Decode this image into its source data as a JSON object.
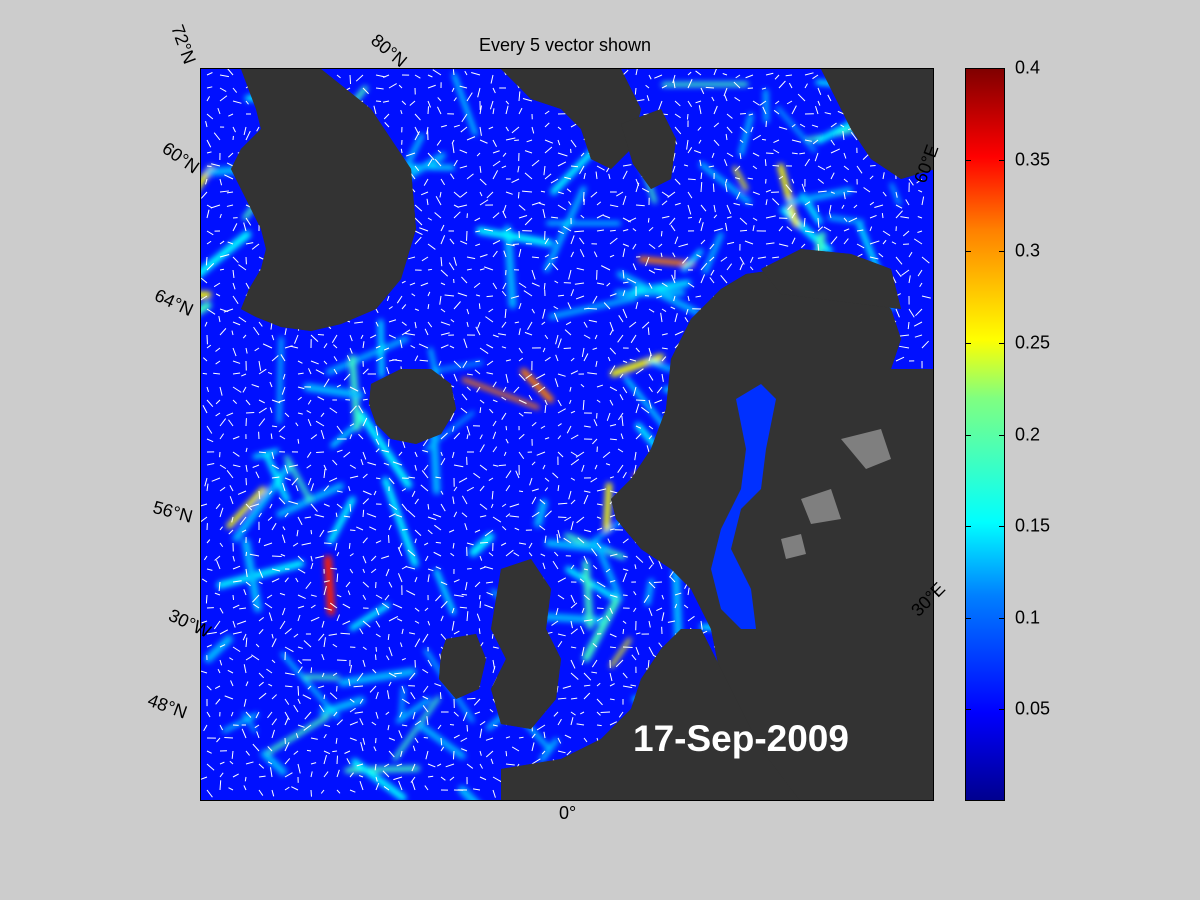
{
  "title": "Every 5 vector shown",
  "date": "17-Sep-2009",
  "colorbar": {
    "min": 0,
    "max": 0.4,
    "ticks": [
      "0.4",
      "0.35",
      "0.3",
      "0.25",
      "0.2",
      "0.15",
      "0.1",
      "0.05"
    ]
  },
  "grid_labels": {
    "lat_72": "72°N",
    "lat_60_top": "60°N",
    "lat_80": "80°N",
    "lat_64": "64°N",
    "lat_56": "56°N",
    "lat_48": "48°N",
    "lon_30w": "30°W",
    "lon_0": "0°",
    "lon_30e": "30°E",
    "lon_60e": "60°E"
  },
  "colors": {
    "background": "#cccccc",
    "land": "#333333",
    "lakes": "#7f7f7f",
    "ocean_low": "#0000ff",
    "vector": "#ffffff"
  }
}
